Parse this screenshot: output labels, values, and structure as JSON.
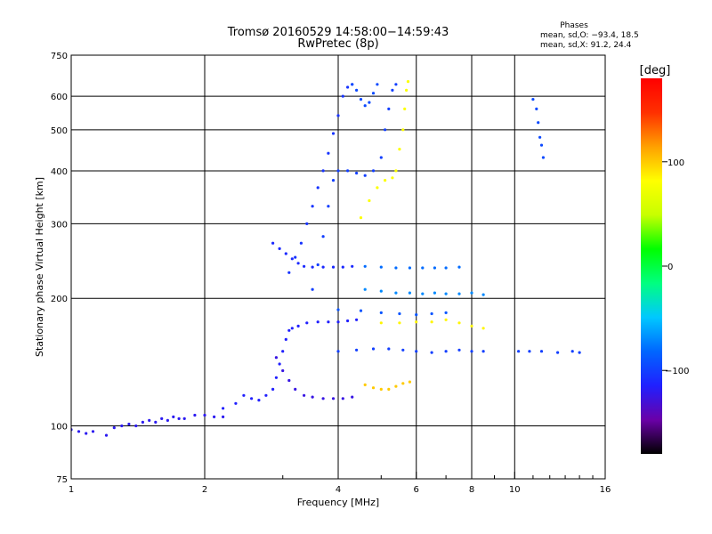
{
  "header": {
    "title_line1": "Tromsø 20160529 14:58:00−14:59:43",
    "title_line2": "RwPretec (8p)"
  },
  "phase_info": {
    "heading": "Phases",
    "line_o": "mean, sd,O: −93.4, 18.5",
    "line_x": "mean, sd,X:  91.2, 24.4"
  },
  "colorbar": {
    "label": "[deg]",
    "ticks": [
      {
        "value": 100,
        "label": "100"
      },
      {
        "value": 0,
        "label": "0"
      },
      {
        "value": -100,
        "label": "−100"
      }
    ],
    "range": [
      -180,
      180
    ],
    "stops": [
      "#000000",
      "#6a00a8",
      "#2020ff",
      "#0066ff",
      "#00c8ff",
      "#00ff80",
      "#00ff00",
      "#c8ff00",
      "#ffff00",
      "#ffa000",
      "#ff3000",
      "#ff0000"
    ]
  },
  "chart_data": {
    "type": "scatter",
    "title": "Tromsø 20160529 14:58:00−14:59:43",
    "subtitle": "RwPretec (8p)",
    "xlabel": "Frequency [MHz]",
    "ylabel": "Stationary phase Virtual Height [km]",
    "x_scale": "log",
    "y_scale": "log",
    "xlim": [
      1,
      16
    ],
    "ylim": [
      75,
      750
    ],
    "x_ticks": [
      1,
      2,
      4,
      6,
      8,
      10,
      16
    ],
    "x_ticklabels": [
      "1",
      "2",
      "4",
      "6",
      "8",
      "10",
      "16"
    ],
    "x_minor_ticks": [
      3,
      5,
      7,
      9,
      11,
      12,
      13,
      14,
      15
    ],
    "y_ticks": [
      75,
      100,
      200,
      300,
      400,
      500,
      600,
      750
    ],
    "y_ticklabels": [
      "75",
      "100",
      "200",
      "300",
      "400",
      "500",
      "600",
      "750"
    ],
    "grid": true,
    "color_variable": "phase [deg]",
    "series": [
      {
        "phase": -120,
        "points": [
          [
            1.0,
            98
          ],
          [
            1.04,
            97
          ],
          [
            1.08,
            96
          ],
          [
            1.12,
            97
          ],
          [
            1.2,
            95
          ],
          [
            1.25,
            99
          ],
          [
            1.3,
            100
          ],
          [
            1.35,
            101
          ],
          [
            1.4,
            100
          ],
          [
            1.45,
            102
          ],
          [
            1.5,
            103
          ],
          [
            1.55,
            102
          ],
          [
            1.6,
            104
          ],
          [
            1.65,
            103
          ],
          [
            1.7,
            105
          ],
          [
            1.75,
            104
          ],
          [
            1.8,
            104
          ],
          [
            1.9,
            106
          ],
          [
            2.0,
            106
          ],
          [
            2.1,
            105
          ],
          [
            2.2,
            105
          ]
        ]
      },
      {
        "phase": -115,
        "points": [
          [
            2.2,
            110
          ],
          [
            2.35,
            113
          ],
          [
            2.45,
            118
          ],
          [
            2.55,
            116
          ],
          [
            2.65,
            115
          ],
          [
            2.75,
            118
          ],
          [
            2.85,
            122
          ],
          [
            2.9,
            130
          ],
          [
            2.95,
            140
          ],
          [
            3.0,
            150
          ],
          [
            3.05,
            160
          ],
          [
            3.1,
            168
          ],
          [
            3.15,
            170
          ],
          [
            3.25,
            172
          ],
          [
            3.4,
            175
          ],
          [
            3.6,
            176
          ],
          [
            3.8,
            176
          ],
          [
            4.0,
            176
          ],
          [
            4.2,
            177
          ],
          [
            4.4,
            178
          ]
        ]
      },
      {
        "phase": -125,
        "points": [
          [
            2.9,
            145
          ],
          [
            3.0,
            135
          ],
          [
            3.1,
            128
          ],
          [
            3.2,
            122
          ],
          [
            3.35,
            118
          ],
          [
            3.5,
            117
          ],
          [
            3.7,
            116
          ],
          [
            3.9,
            116
          ],
          [
            4.1,
            116
          ],
          [
            4.3,
            117
          ]
        ]
      },
      {
        "phase": -110,
        "points": [
          [
            2.85,
            270
          ],
          [
            2.95,
            262
          ],
          [
            3.05,
            255
          ],
          [
            3.15,
            248
          ],
          [
            3.25,
            242
          ],
          [
            3.35,
            238
          ],
          [
            3.5,
            237
          ],
          [
            3.7,
            237
          ],
          [
            3.9,
            237
          ],
          [
            4.1,
            237
          ],
          [
            4.3,
            238
          ]
        ]
      },
      {
        "phase": -105,
        "points": [
          [
            3.1,
            230
          ],
          [
            3.2,
            250
          ],
          [
            3.3,
            270
          ],
          [
            3.4,
            300
          ],
          [
            3.5,
            330
          ],
          [
            3.6,
            365
          ],
          [
            3.7,
            400
          ],
          [
            3.8,
            440
          ],
          [
            3.9,
            490
          ],
          [
            4.0,
            540
          ],
          [
            4.1,
            600
          ],
          [
            4.2,
            630
          ],
          [
            4.3,
            640
          ]
        ]
      },
      {
        "phase": -100,
        "points": [
          [
            3.5,
            210
          ],
          [
            3.6,
            240
          ],
          [
            3.7,
            280
          ],
          [
            3.8,
            330
          ],
          [
            3.9,
            380
          ],
          [
            4.0,
            400
          ],
          [
            4.2,
            400
          ],
          [
            4.4,
            395
          ],
          [
            4.6,
            390
          ],
          [
            4.8,
            400
          ],
          [
            5.0,
            430
          ],
          [
            5.1,
            500
          ],
          [
            5.2,
            560
          ],
          [
            5.3,
            620
          ],
          [
            5.4,
            640
          ]
        ]
      },
      {
        "phase": -95,
        "points": [
          [
            4.3,
            640
          ],
          [
            4.4,
            620
          ],
          [
            4.5,
            590
          ],
          [
            4.6,
            570
          ],
          [
            4.7,
            580
          ],
          [
            4.8,
            610
          ],
          [
            4.9,
            640
          ]
        ]
      },
      {
        "phase": -100,
        "points": [
          [
            4.0,
            150
          ],
          [
            4.4,
            151
          ],
          [
            4.8,
            152
          ],
          [
            5.2,
            152
          ],
          [
            5.6,
            151
          ],
          [
            6.0,
            150
          ],
          [
            6.5,
            149
          ],
          [
            7.0,
            150
          ],
          [
            7.5,
            151
          ],
          [
            8.0,
            150
          ],
          [
            8.5,
            150
          ]
        ]
      },
      {
        "phase": -90,
        "points": [
          [
            4.0,
            188
          ],
          [
            4.5,
            187
          ],
          [
            5.0,
            185
          ],
          [
            5.5,
            184
          ],
          [
            6.0,
            183
          ],
          [
            6.5,
            184
          ],
          [
            7.0,
            185
          ]
        ]
      },
      {
        "phase": -80,
        "points": [
          [
            4.6,
            238
          ],
          [
            5.0,
            237
          ],
          [
            5.4,
            236
          ],
          [
            5.8,
            236
          ],
          [
            6.2,
            236
          ],
          [
            6.6,
            236
          ],
          [
            7.0,
            236
          ],
          [
            7.5,
            237
          ]
        ]
      },
      {
        "phase": -70,
        "points": [
          [
            4.6,
            210
          ],
          [
            5.0,
            208
          ],
          [
            5.4,
            206
          ],
          [
            5.8,
            206
          ],
          [
            6.2,
            205
          ],
          [
            6.6,
            206
          ],
          [
            7.0,
            205
          ],
          [
            7.5,
            205
          ],
          [
            8.0,
            206
          ],
          [
            8.5,
            204
          ]
        ]
      },
      {
        "phase": 80,
        "points": [
          [
            4.5,
            310
          ],
          [
            4.7,
            340
          ],
          [
            4.9,
            365
          ],
          [
            5.1,
            380
          ],
          [
            5.3,
            385
          ],
          [
            5.4,
            400
          ],
          [
            5.5,
            450
          ],
          [
            5.6,
            500
          ],
          [
            5.65,
            560
          ],
          [
            5.7,
            620
          ],
          [
            5.75,
            650
          ]
        ]
      },
      {
        "phase": 100,
        "points": [
          [
            4.6,
            125
          ],
          [
            4.8,
            123
          ],
          [
            5.0,
            122
          ],
          [
            5.2,
            122
          ],
          [
            5.4,
            124
          ],
          [
            5.6,
            126
          ],
          [
            5.8,
            127
          ]
        ]
      },
      {
        "phase": 85,
        "points": [
          [
            5.0,
            175
          ],
          [
            5.5,
            175
          ],
          [
            6.0,
            176
          ],
          [
            6.5,
            176
          ],
          [
            7.0,
            178
          ],
          [
            7.5,
            175
          ],
          [
            8.0,
            172
          ],
          [
            8.5,
            170
          ]
        ]
      },
      {
        "phase": -100,
        "points": [
          [
            10.2,
            150
          ],
          [
            10.8,
            150
          ],
          [
            11.5,
            150
          ],
          [
            12.5,
            149
          ],
          [
            13.5,
            150
          ],
          [
            14.0,
            149
          ]
        ]
      },
      {
        "phase": -95,
        "points": [
          [
            11.0,
            590
          ],
          [
            11.2,
            560
          ],
          [
            11.3,
            520
          ],
          [
            11.4,
            480
          ],
          [
            11.5,
            460
          ],
          [
            11.6,
            430
          ]
        ]
      }
    ]
  }
}
